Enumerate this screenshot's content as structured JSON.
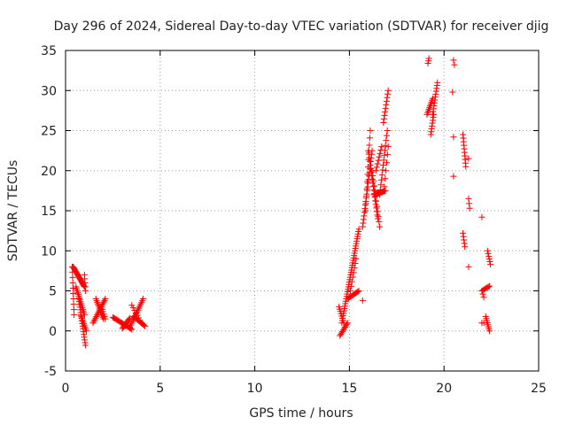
{
  "chart_data": {
    "type": "scatter",
    "title": "Day 296 of 2024, Sidereal Day-to-day VTEC variation (SDTVAR) for receiver djig",
    "xlabel": "GPS time / hours",
    "ylabel": "SDTVAR / TECUs",
    "xlim": [
      0,
      25
    ],
    "ylim": [
      -5,
      35
    ],
    "xticks": [
      "0",
      "5",
      "10",
      "15",
      "20",
      "25"
    ],
    "yticks": [
      "-5",
      "0",
      "5",
      "10",
      "15",
      "20",
      "25",
      "30",
      "35"
    ],
    "grid": true,
    "marker": "plus",
    "color": "#ff0000",
    "series": [
      {
        "name": "SDTVAR",
        "segments": [
          {
            "x0": 0.35,
            "x1": 0.45,
            "y0": 8.0,
            "y1": 2.0,
            "n": 10
          },
          {
            "x0": 0.4,
            "x1": 1.0,
            "y0": 8.0,
            "y1": 5.5,
            "n": 24
          },
          {
            "x0": 0.55,
            "x1": 1.0,
            "y0": 5.5,
            "y1": 2.0,
            "n": 16
          },
          {
            "x0": 0.7,
            "x1": 1.05,
            "y0": 4.0,
            "y1": -1.8,
            "n": 18
          },
          {
            "x0": 0.8,
            "x1": 1.1,
            "y0": 2.0,
            "y1": 0.0,
            "n": 10
          },
          {
            "x0": 1.0,
            "x1": 1.05,
            "y0": 7.0,
            "y1": 5.0,
            "n": 5
          },
          {
            "x0": 1.45,
            "x1": 2.1,
            "y0": 1.0,
            "y1": 4.0,
            "n": 16
          },
          {
            "x0": 1.6,
            "x1": 2.0,
            "y0": 4.0,
            "y1": 1.5,
            "n": 12
          },
          {
            "x0": 1.9,
            "x1": 2.1,
            "y0": 3.0,
            "y1": 1.5,
            "n": 6
          },
          {
            "x0": 2.5,
            "x1": 3.5,
            "y0": 1.7,
            "y1": 0.2,
            "n": 20
          },
          {
            "x0": 3.0,
            "x1": 3.4,
            "y0": 0.3,
            "y1": 1.6,
            "n": 10
          },
          {
            "x0": 3.4,
            "x1": 4.1,
            "y0": 0.5,
            "y1": 4.0,
            "n": 16
          },
          {
            "x0": 3.6,
            "x1": 4.2,
            "y0": 1.8,
            "y1": 0.6,
            "n": 12
          },
          {
            "x0": 3.5,
            "x1": 4.0,
            "y0": 3.2,
            "y1": 1.0,
            "n": 8
          },
          {
            "x0": 14.45,
            "x1": 14.7,
            "y0": 3.0,
            "y1": 1.0,
            "n": 8
          },
          {
            "x0": 14.5,
            "x1": 14.9,
            "y0": -0.6,
            "y1": 1.0,
            "n": 10
          },
          {
            "x0": 14.6,
            "x1": 15.5,
            "y0": 1.0,
            "y1": 12.7,
            "n": 40
          },
          {
            "x0": 14.9,
            "x1": 15.5,
            "y0": 4.0,
            "y1": 5.0,
            "n": 12
          },
          {
            "x0": 15.05,
            "x1": 15.35,
            "y0": 5.0,
            "y1": 9.0,
            "n": 8
          },
          {
            "x0": 15.7,
            "x1": 15.9,
            "y0": 3.8,
            "y1": 3.8,
            "n": 1
          },
          {
            "x0": 15.7,
            "x1": 16.2,
            "y0": 13.0,
            "y1": 22.5,
            "n": 22
          },
          {
            "x0": 15.85,
            "x1": 16.1,
            "y0": 15.0,
            "y1": 25.0,
            "n": 12
          },
          {
            "x0": 16.0,
            "x1": 16.5,
            "y0": 22.5,
            "y1": 14.0,
            "n": 20
          },
          {
            "x0": 16.2,
            "x1": 16.6,
            "y0": 20.0,
            "y1": 13.0,
            "n": 12
          },
          {
            "x0": 16.3,
            "x1": 16.9,
            "y0": 17.0,
            "y1": 17.5,
            "n": 14
          },
          {
            "x0": 16.4,
            "x1": 16.7,
            "y0": 20.0,
            "y1": 23.0,
            "n": 8
          },
          {
            "x0": 16.6,
            "x1": 17.0,
            "y0": 17.0,
            "y1": 25.0,
            "n": 14
          },
          {
            "x0": 16.8,
            "x1": 17.05,
            "y0": 26.0,
            "y1": 30.0,
            "n": 10
          },
          {
            "x0": 16.85,
            "x1": 17.05,
            "y0": 18.0,
            "y1": 23.0,
            "n": 6
          },
          {
            "x0": 19.15,
            "x1": 19.2,
            "y0": 33.4,
            "y1": 34.0,
            "n": 3
          },
          {
            "x0": 19.1,
            "x1": 19.4,
            "y0": 27.0,
            "y1": 29.0,
            "n": 10
          },
          {
            "x0": 19.3,
            "x1": 19.45,
            "y0": 24.5,
            "y1": 27.0,
            "n": 8
          },
          {
            "x0": 19.4,
            "x1": 19.65,
            "y0": 27.0,
            "y1": 31.0,
            "n": 12
          },
          {
            "x0": 20.5,
            "x1": 20.55,
            "y0": 33.8,
            "y1": 33.2,
            "n": 2
          },
          {
            "x0": 20.45,
            "x1": 20.5,
            "y0": 29.8,
            "y1": 29.8,
            "n": 1
          },
          {
            "x0": 20.5,
            "x1": 20.55,
            "y0": 24.2,
            "y1": 24.2,
            "n": 1
          },
          {
            "x0": 20.5,
            "x1": 20.55,
            "y0": 19.3,
            "y1": 19.3,
            "n": 1
          },
          {
            "x0": 21.0,
            "x1": 21.15,
            "y0": 24.5,
            "y1": 20.5,
            "n": 10
          },
          {
            "x0": 21.0,
            "x1": 21.1,
            "y0": 12.2,
            "y1": 10.5,
            "n": 5
          },
          {
            "x0": 21.3,
            "x1": 21.35,
            "y0": 21.5,
            "y1": 21.5,
            "n": 1
          },
          {
            "x0": 21.3,
            "x1": 21.35,
            "y0": 16.5,
            "y1": 15.3,
            "n": 3
          },
          {
            "x0": 21.3,
            "x1": 21.3,
            "y0": 8.0,
            "y1": 8.0,
            "n": 1
          },
          {
            "x0": 22.0,
            "x1": 22.05,
            "y0": 14.2,
            "y1": 14.2,
            "n": 1
          },
          {
            "x0": 22.0,
            "x1": 22.4,
            "y0": 5.0,
            "y1": 5.6,
            "n": 8
          },
          {
            "x0": 22.0,
            "x1": 22.1,
            "y0": 5.0,
            "y1": 4.2,
            "n": 3
          },
          {
            "x0": 22.0,
            "x1": 22.1,
            "y0": 1.0,
            "y1": 1.0,
            "n": 2
          },
          {
            "x0": 22.2,
            "x1": 22.4,
            "y0": 1.8,
            "y1": 0.0,
            "n": 8
          },
          {
            "x0": 22.3,
            "x1": 22.45,
            "y0": 10.0,
            "y1": 8.3,
            "n": 6
          }
        ]
      }
    ]
  }
}
